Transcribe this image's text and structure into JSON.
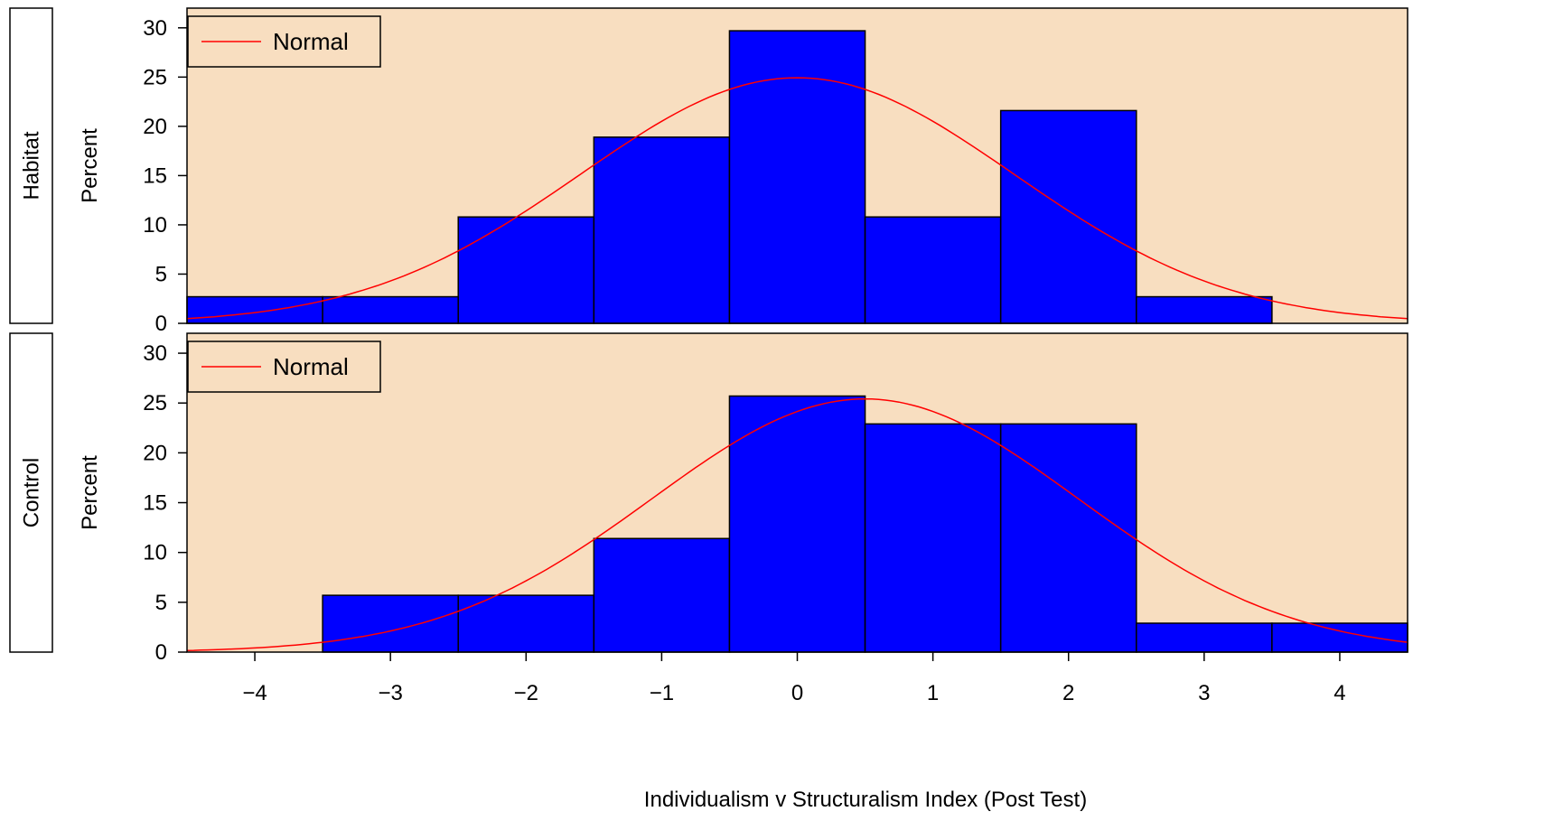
{
  "chart_data": {
    "type": "bar",
    "subtype": "paneled-histogram-with-normal-curve",
    "xlabel": "Individualism v Structuralism Index (Post Test)",
    "ylabel": "Percent",
    "xlim": [
      -4.5,
      4.5
    ],
    "ylim": [
      0,
      32
    ],
    "xticks": [
      -4,
      -3,
      -2,
      -1,
      0,
      1,
      2,
      3,
      4
    ],
    "xtick_labels": [
      "−4",
      "−3",
      "−2",
      "−1",
      "0",
      "1",
      "2",
      "3",
      "4"
    ],
    "yticks": [
      0,
      5,
      10,
      15,
      20,
      25,
      30
    ],
    "ytick_labels": [
      "0",
      "5",
      "10",
      "15",
      "20",
      "25",
      "30"
    ],
    "bin_width": 1,
    "bar_color": "#0000ff",
    "curve_color": "#ff0000",
    "panel_background": "#f8dec0",
    "grid": false,
    "legend_position": "top-left",
    "panels": [
      {
        "name": "Habitat",
        "legend": "Normal",
        "bin_centers": [
          -4,
          -3,
          -2,
          -1,
          0,
          1,
          2,
          3
        ],
        "values": [
          2.7,
          2.7,
          10.8,
          18.9,
          29.7,
          10.8,
          21.6,
          2.7
        ],
        "normal": {
          "mean": 0.0,
          "sd": 1.6
        }
      },
      {
        "name": "Control",
        "legend": "Normal",
        "bin_centers": [
          -3,
          -2,
          -1,
          0,
          1,
          2,
          3,
          4
        ],
        "values": [
          5.7,
          5.7,
          11.4,
          25.7,
          22.9,
          22.9,
          2.9,
          2.9
        ],
        "normal": {
          "mean": 0.5,
          "sd": 1.57
        }
      }
    ]
  }
}
